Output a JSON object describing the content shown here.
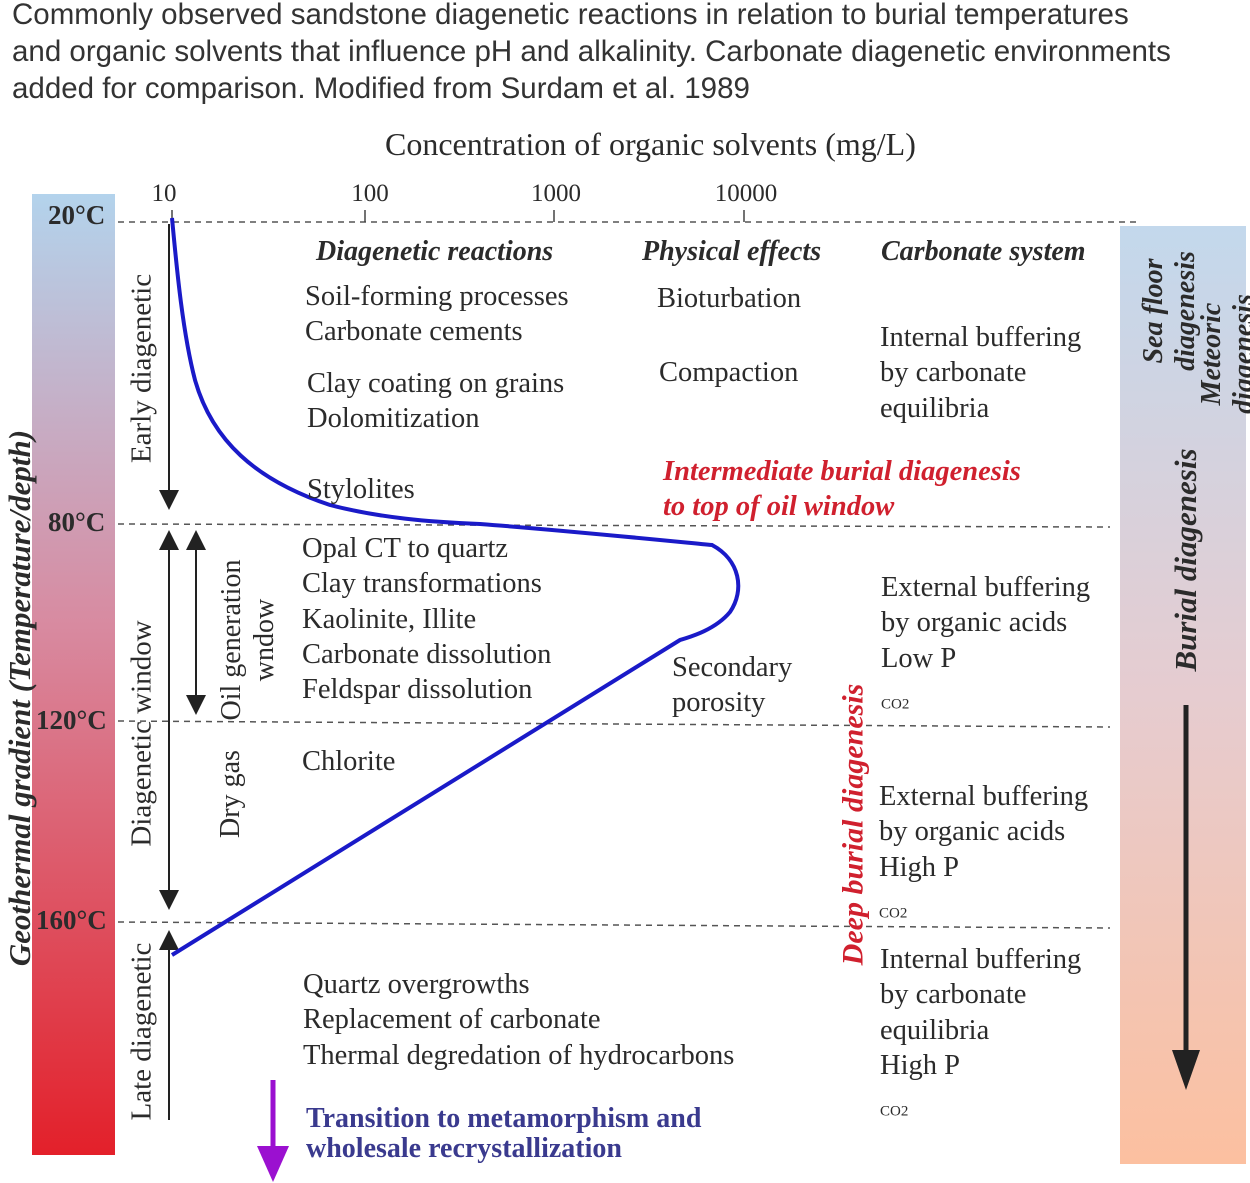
{
  "caption": [
    "Commonly observed sandstone diagenetic reactions in relation to burial temperatures",
    "and organic solvents that influence pH and alkalinity. Carbonate diagenetic environments",
    "added for comparison. Modified from Surdam et al. 1989"
  ],
  "x_axis": {
    "title": "Concentration of organic solvents (mg/L)",
    "ticks": [
      "10",
      "100",
      "1000",
      "10000"
    ]
  },
  "temperatures": [
    "20°C",
    "80°C",
    "120°C",
    "160°C"
  ],
  "left_bar_label": "Geothermal gradient (Temperature/depth)",
  "stages": {
    "early": "Early diagenetic",
    "window": "Diagenetic window",
    "late": "Late diagenetic",
    "oil_line1": "Oil generation",
    "oil_line2": "wndow",
    "dry_gas": "Dry gas"
  },
  "headers": {
    "reactions": "Diagenetic reactions",
    "physical": "Physical effects",
    "carbonate": "Carbonate system"
  },
  "reactions": {
    "block1": [
      "Soil-forming processes",
      "Carbonate cements"
    ],
    "block2": [
      "Clay coating on grains",
      "Dolomitization"
    ],
    "stylolites": "Stylolites",
    "block3": [
      "Opal CT to quartz",
      "Clay transformations",
      "Kaolinite, Illite",
      "Carbonate dissolution",
      "Feldspar dissolution"
    ],
    "chlorite": "Chlorite",
    "block4": [
      "Quartz overgrowths",
      "Replacement of carbonate",
      "Thermal degredation of hydrocarbons"
    ]
  },
  "physical": {
    "bioturbation": "Bioturbation",
    "compaction": "Compaction",
    "secondary": [
      "Secondary",
      "porosity"
    ]
  },
  "carbonate": {
    "block1": [
      "Internal buffering",
      "by carbonate",
      "equilibria"
    ],
    "block2_lines": [
      "External buffering",
      "by organic acids"
    ],
    "block2_last": "Low P",
    "block3_lines": [
      "External buffering",
      "by organic acids"
    ],
    "block3_last": "High P",
    "block4_lines": [
      "Internal buffering",
      "by carbonate",
      "equilibria"
    ],
    "block4_last": "High P",
    "subscript": "CO2"
  },
  "zones": {
    "intermediate": [
      "Intermediate burial diagenesis",
      "to top of oil window"
    ],
    "deep": "Deep burial diagenesis"
  },
  "right_bar": {
    "sea_floor": [
      "Sea floor",
      "diagenesis"
    ],
    "meteoric": [
      "Meteoric",
      "diagenesis"
    ],
    "burial": "Burial diagenesis"
  },
  "transition": [
    "Transition to metamorphism and",
    "wholesale recrystallization"
  ],
  "colors": {
    "curve": "#1a1ac8",
    "red_text": "#d0202e",
    "transition_arrow": "#9b10d0",
    "left_bar_top": "#b3d3ec",
    "left_bar_bottom": "#e3202a",
    "right_bar_top": "#c3d8ec",
    "right_bar_bottom": "#fcc0a0"
  }
}
